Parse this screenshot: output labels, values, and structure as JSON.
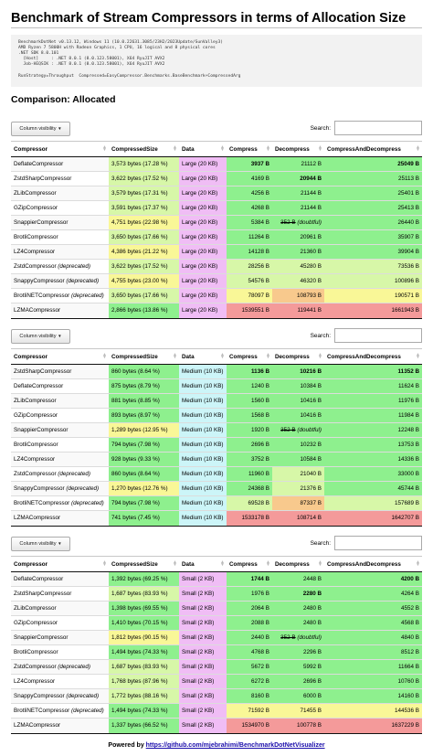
{
  "title": "Benchmark of Stream Compressors in terms of Allocation Size",
  "environment_lines": [
    "BenchmarkDotNet v0.13.12, Windows 11 (10.0.22631.3085/23H2/2023Update/SunValley3)",
    "AMD Ryzen 7 5800H with Radeon Graphics, 1 CPU, 16 logical and 8 physical cores",
    ".NET SDK 8.0.101",
    "  [Host]     : .NET 8.0.1 (8.0.123.58001), X64 RyuJIT AVX2",
    "  Job-HEQSIK : .NET 8.0.1 (8.0.123.58001), X64 RyuJIT AVX2",
    "",
    "RunStrategy=Throughput  Compressed=EasyCompressor.Benchmarks.BaseBenchmark+CompressedArg"
  ],
  "section_title": "Comparison: Allocated",
  "controls": {
    "column_visibility_label": "Column visibility",
    "column_visibility_caret": "▼",
    "search_label": "Search:",
    "search_value": "",
    "search_placeholder": ""
  },
  "columns": [
    "Compressor",
    "CompressedSize",
    "Data",
    "Compress",
    "Decompress",
    "CompressAndDecompress"
  ],
  "colors": {
    "green": "#8ef08e",
    "light_green": "#d7f7a8",
    "yellow": "#f9f797",
    "orange": "#f8c98d",
    "red": "#f49a9a",
    "pink": "#f0bdf5",
    "cyan": "#ccf5f8",
    "row_odd": "#f9f9f9",
    "row_even": "#ffffff"
  },
  "tables": [
    {
      "data_bg": "pink",
      "rows": [
        {
          "name": "DeflateCompressor",
          "note": "",
          "size": "3,573 bytes (17.28 %)",
          "size_c": "light_green",
          "data": "Large (20 KB)",
          "compress": "3937 B",
          "compress_c": "green",
          "compress_b": true,
          "decompress": "21112 B",
          "decompress_c": "green",
          "decompress_b": false,
          "decompress_strike": "",
          "decompress_note": "",
          "cad": "25049 B",
          "cad_c": "green",
          "cad_b": true
        },
        {
          "name": "ZstdSharpCompressor",
          "note": "",
          "size": "3,622 bytes (17.52 %)",
          "size_c": "light_green",
          "data": "Large (20 KB)",
          "compress": "4169 B",
          "compress_c": "green",
          "compress_b": false,
          "decompress": "20944 B",
          "decompress_c": "green",
          "decompress_b": true,
          "decompress_strike": "",
          "decompress_note": "",
          "cad": "25113 B",
          "cad_c": "green",
          "cad_b": false
        },
        {
          "name": "ZLibCompressor",
          "note": "",
          "size": "3,579 bytes (17.31 %)",
          "size_c": "light_green",
          "data": "Large (20 KB)",
          "compress": "4256 B",
          "compress_c": "green",
          "compress_b": false,
          "decompress": "21144 B",
          "decompress_c": "green",
          "decompress_b": false,
          "decompress_strike": "",
          "decompress_note": "",
          "cad": "25401 B",
          "cad_c": "green",
          "cad_b": false
        },
        {
          "name": "GZipCompressor",
          "note": "",
          "size": "3,591 bytes (17.37 %)",
          "size_c": "light_green",
          "data": "Large (20 KB)",
          "compress": "4268 B",
          "compress_c": "green",
          "compress_b": false,
          "decompress": "21144 B",
          "decompress_c": "green",
          "decompress_b": false,
          "decompress_strike": "",
          "decompress_note": "",
          "cad": "25413 B",
          "cad_c": "green",
          "cad_b": false
        },
        {
          "name": "SnappierCompressor",
          "note": "",
          "size": "4,751 bytes (22.98 %)",
          "size_c": "yellow",
          "data": "Large (20 KB)",
          "compress": "5384 B",
          "compress_c": "green",
          "compress_b": false,
          "decompress": "",
          "decompress_c": "green",
          "decompress_b": false,
          "decompress_strike": "352 B",
          "decompress_note": "(doubtful)",
          "cad": "26440 B",
          "cad_c": "green",
          "cad_b": false
        },
        {
          "name": "BrotliCompressor",
          "note": "",
          "size": "3,650 bytes (17.66 %)",
          "size_c": "light_green",
          "data": "Large (20 KB)",
          "compress": "11264 B",
          "compress_c": "green",
          "compress_b": false,
          "decompress": "20961 B",
          "decompress_c": "green",
          "decompress_b": false,
          "decompress_strike": "",
          "decompress_note": "",
          "cad": "35907 B",
          "cad_c": "green",
          "cad_b": false
        },
        {
          "name": "LZ4Compressor",
          "note": "",
          "size": "4,386 bytes (21.22 %)",
          "size_c": "yellow",
          "data": "Large (20 KB)",
          "compress": "14128 B",
          "compress_c": "green",
          "compress_b": false,
          "decompress": "21360 B",
          "decompress_c": "green",
          "decompress_b": false,
          "decompress_strike": "",
          "decompress_note": "",
          "cad": "39904 B",
          "cad_c": "green",
          "cad_b": false
        },
        {
          "name": "ZstdCompressor",
          "note": "(deprecated)",
          "size": "3,622 bytes (17.52 %)",
          "size_c": "light_green",
          "data": "Large (20 KB)",
          "compress": "28256 B",
          "compress_c": "light_green",
          "compress_b": false,
          "decompress": "45280 B",
          "decompress_c": "light_green",
          "decompress_b": false,
          "decompress_strike": "",
          "decompress_note": "",
          "cad": "73536 B",
          "cad_c": "light_green",
          "cad_b": false
        },
        {
          "name": "SnappyCompressor",
          "note": "(deprecated)",
          "size": "4,755 bytes (23.00 %)",
          "size_c": "yellow",
          "data": "Large (20 KB)",
          "compress": "54576 B",
          "compress_c": "light_green",
          "compress_b": false,
          "decompress": "46320 B",
          "decompress_c": "light_green",
          "decompress_b": false,
          "decompress_strike": "",
          "decompress_note": "",
          "cad": "100896 B",
          "cad_c": "light_green",
          "cad_b": false
        },
        {
          "name": "BrotliNETCompressor",
          "note": "(deprecated)",
          "size": "3,650 bytes (17.66 %)",
          "size_c": "light_green",
          "data": "Large (20 KB)",
          "compress": "78097 B",
          "compress_c": "yellow",
          "compress_b": false,
          "decompress": "108793 B",
          "decompress_c": "orange",
          "decompress_b": false,
          "decompress_strike": "",
          "decompress_note": "",
          "cad": "190571 B",
          "cad_c": "yellow",
          "cad_b": false
        },
        {
          "name": "LZMACompressor",
          "note": "",
          "size": "2,866 bytes (13.86 %)",
          "size_c": "green",
          "data": "Large (20 KB)",
          "compress": "1539551 B",
          "compress_c": "red",
          "compress_b": false,
          "decompress": "119441 B",
          "decompress_c": "red",
          "decompress_b": false,
          "decompress_strike": "",
          "decompress_note": "",
          "cad": "1661943 B",
          "cad_c": "red",
          "cad_b": false
        }
      ]
    },
    {
      "data_bg": "cyan",
      "rows": [
        {
          "name": "ZstdSharpCompressor",
          "note": "",
          "size": "860 bytes (8.64 %)",
          "size_c": "green",
          "data": "Medium (10 KB)",
          "compress": "1136 B",
          "compress_c": "green",
          "compress_b": true,
          "decompress": "10216 B",
          "decompress_c": "green",
          "decompress_b": true,
          "decompress_strike": "",
          "decompress_note": "",
          "cad": "11352 B",
          "cad_c": "green",
          "cad_b": true
        },
        {
          "name": "DeflateCompressor",
          "note": "",
          "size": "875 bytes (8.79 %)",
          "size_c": "green",
          "data": "Medium (10 KB)",
          "compress": "1240 B",
          "compress_c": "green",
          "compress_b": false,
          "decompress": "10384 B",
          "decompress_c": "green",
          "decompress_b": false,
          "decompress_strike": "",
          "decompress_note": "",
          "cad": "11624 B",
          "cad_c": "green",
          "cad_b": false
        },
        {
          "name": "ZLibCompressor",
          "note": "",
          "size": "881 bytes (8.85 %)",
          "size_c": "green",
          "data": "Medium (10 KB)",
          "compress": "1560 B",
          "compress_c": "green",
          "compress_b": false,
          "decompress": "10416 B",
          "decompress_c": "green",
          "decompress_b": false,
          "decompress_strike": "",
          "decompress_note": "",
          "cad": "11976 B",
          "cad_c": "green",
          "cad_b": false
        },
        {
          "name": "GZipCompressor",
          "note": "",
          "size": "893 bytes (8.97 %)",
          "size_c": "green",
          "data": "Medium (10 KB)",
          "compress": "1568 B",
          "compress_c": "green",
          "compress_b": false,
          "decompress": "10416 B",
          "decompress_c": "green",
          "decompress_b": false,
          "decompress_strike": "",
          "decompress_note": "",
          "cad": "11984 B",
          "cad_c": "green",
          "cad_b": false
        },
        {
          "name": "SnappierCompressor",
          "note": "",
          "size": "1,289 bytes (12.95 %)",
          "size_c": "yellow",
          "data": "Medium (10 KB)",
          "compress": "1920 B",
          "compress_c": "green",
          "compress_b": false,
          "decompress": "",
          "decompress_c": "green",
          "decompress_b": false,
          "decompress_strike": "352 B",
          "decompress_note": "(doubtful)",
          "cad": "12248 B",
          "cad_c": "green",
          "cad_b": false
        },
        {
          "name": "BrotliCompressor",
          "note": "",
          "size": "794 bytes (7.98 %)",
          "size_c": "green",
          "data": "Medium (10 KB)",
          "compress": "2696 B",
          "compress_c": "green",
          "compress_b": false,
          "decompress": "10232 B",
          "decompress_c": "green",
          "decompress_b": false,
          "decompress_strike": "",
          "decompress_note": "",
          "cad": "13753 B",
          "cad_c": "green",
          "cad_b": false
        },
        {
          "name": "LZ4Compressor",
          "note": "",
          "size": "928 bytes (9.33 %)",
          "size_c": "green",
          "data": "Medium (10 KB)",
          "compress": "3752 B",
          "compress_c": "green",
          "compress_b": false,
          "decompress": "10584 B",
          "decompress_c": "green",
          "decompress_b": false,
          "decompress_strike": "",
          "decompress_note": "",
          "cad": "14336 B",
          "cad_c": "green",
          "cad_b": false
        },
        {
          "name": "ZstdCompressor",
          "note": "(deprecated)",
          "size": "860 bytes (8.64 %)",
          "size_c": "green",
          "data": "Medium (10 KB)",
          "compress": "11960 B",
          "compress_c": "green",
          "compress_b": false,
          "decompress": "21040 B",
          "decompress_c": "light_green",
          "decompress_b": false,
          "decompress_strike": "",
          "decompress_note": "",
          "cad": "33000 B",
          "cad_c": "green",
          "cad_b": false
        },
        {
          "name": "SnappyCompressor",
          "note": "(deprecated)",
          "size": "1,270 bytes (12.76 %)",
          "size_c": "yellow",
          "data": "Medium (10 KB)",
          "compress": "24368 B",
          "compress_c": "green",
          "compress_b": false,
          "decompress": "21376 B",
          "decompress_c": "light_green",
          "decompress_b": false,
          "decompress_strike": "",
          "decompress_note": "",
          "cad": "45744 B",
          "cad_c": "green",
          "cad_b": false
        },
        {
          "name": "BrotliNETCompressor",
          "note": "(deprecated)",
          "size": "794 bytes (7.98 %)",
          "size_c": "green",
          "data": "Medium (10 KB)",
          "compress": "69528 B",
          "compress_c": "light_green",
          "compress_b": false,
          "decompress": "87337 B",
          "decompress_c": "orange",
          "decompress_b": false,
          "decompress_strike": "",
          "decompress_note": "",
          "cad": "157689 B",
          "cad_c": "light_green",
          "cad_b": false
        },
        {
          "name": "LZMACompressor",
          "note": "",
          "size": "741 bytes (7.45 %)",
          "size_c": "green",
          "data": "Medium (10 KB)",
          "compress": "1533178 B",
          "compress_c": "red",
          "compress_b": false,
          "decompress": "108714 B",
          "decompress_c": "red",
          "decompress_b": false,
          "decompress_strike": "",
          "decompress_note": "",
          "cad": "1642707 B",
          "cad_c": "red",
          "cad_b": false
        }
      ]
    },
    {
      "data_bg": "pink",
      "rows": [
        {
          "name": "DeflateCompressor",
          "note": "",
          "size": "1,392 bytes (69.25 %)",
          "size_c": "green",
          "data": "Small (2 KB)",
          "compress": "1744 B",
          "compress_c": "green",
          "compress_b": true,
          "decompress": "2448 B",
          "decompress_c": "green",
          "decompress_b": false,
          "decompress_strike": "",
          "decompress_note": "",
          "cad": "4200 B",
          "cad_c": "green",
          "cad_b": true
        },
        {
          "name": "ZstdSharpCompressor",
          "note": "",
          "size": "1,687 bytes (83.93 %)",
          "size_c": "light_green",
          "data": "Small (2 KB)",
          "compress": "1976 B",
          "compress_c": "green",
          "compress_b": false,
          "decompress": "2280 B",
          "decompress_c": "green",
          "decompress_b": true,
          "decompress_strike": "",
          "decompress_note": "",
          "cad": "4264 B",
          "cad_c": "green",
          "cad_b": false
        },
        {
          "name": "ZLibCompressor",
          "note": "",
          "size": "1,398 bytes (69.55 %)",
          "size_c": "green",
          "data": "Small (2 KB)",
          "compress": "2064 B",
          "compress_c": "green",
          "compress_b": false,
          "decompress": "2480 B",
          "decompress_c": "green",
          "decompress_b": false,
          "decompress_strike": "",
          "decompress_note": "",
          "cad": "4552 B",
          "cad_c": "green",
          "cad_b": false
        },
        {
          "name": "GZipCompressor",
          "note": "",
          "size": "1,410 bytes (70.15 %)",
          "size_c": "green",
          "data": "Small (2 KB)",
          "compress": "2088 B",
          "compress_c": "green",
          "compress_b": false,
          "decompress": "2480 B",
          "decompress_c": "green",
          "decompress_b": false,
          "decompress_strike": "",
          "decompress_note": "",
          "cad": "4568 B",
          "cad_c": "green",
          "cad_b": false
        },
        {
          "name": "SnappierCompressor",
          "note": "",
          "size": "1,812 bytes (90.15 %)",
          "size_c": "yellow",
          "data": "Small (2 KB)",
          "compress": "2440 B",
          "compress_c": "green",
          "compress_b": false,
          "decompress": "",
          "decompress_c": "green",
          "decompress_b": false,
          "decompress_strike": "352 B",
          "decompress_note": "(doubtful)",
          "cad": "4840 B",
          "cad_c": "green",
          "cad_b": false
        },
        {
          "name": "BrotliCompressor",
          "note": "",
          "size": "1,494 bytes (74.33 %)",
          "size_c": "green",
          "data": "Small (2 KB)",
          "compress": "4768 B",
          "compress_c": "green",
          "compress_b": false,
          "decompress": "2296 B",
          "decompress_c": "green",
          "decompress_b": false,
          "decompress_strike": "",
          "decompress_note": "",
          "cad": "8512 B",
          "cad_c": "green",
          "cad_b": false
        },
        {
          "name": "ZstdCompressor",
          "note": "(deprecated)",
          "size": "1,687 bytes (83.93 %)",
          "size_c": "light_green",
          "data": "Small (2 KB)",
          "compress": "5672 B",
          "compress_c": "green",
          "compress_b": false,
          "decompress": "5992 B",
          "decompress_c": "green",
          "decompress_b": false,
          "decompress_strike": "",
          "decompress_note": "",
          "cad": "11664 B",
          "cad_c": "green",
          "cad_b": false
        },
        {
          "name": "LZ4Compressor",
          "note": "",
          "size": "1,768 bytes (87.96 %)",
          "size_c": "light_green",
          "data": "Small (2 KB)",
          "compress": "6272 B",
          "compress_c": "green",
          "compress_b": false,
          "decompress": "2696 B",
          "decompress_c": "green",
          "decompress_b": false,
          "decompress_strike": "",
          "decompress_note": "",
          "cad": "10760 B",
          "cad_c": "green",
          "cad_b": false
        },
        {
          "name": "SnappyCompressor",
          "note": "(deprecated)",
          "size": "1,772 bytes (88.16 %)",
          "size_c": "light_green",
          "data": "Small (2 KB)",
          "compress": "8160 B",
          "compress_c": "green",
          "compress_b": false,
          "decompress": "6000 B",
          "decompress_c": "green",
          "decompress_b": false,
          "decompress_strike": "",
          "decompress_note": "",
          "cad": "14160 B",
          "cad_c": "green",
          "cad_b": false
        },
        {
          "name": "BrotliNETCompressor",
          "note": "(deprecated)",
          "size": "1,494 bytes (74.33 %)",
          "size_c": "green",
          "data": "Small (2 KB)",
          "compress": "71592 B",
          "compress_c": "yellow",
          "compress_b": false,
          "decompress": "71455 B",
          "decompress_c": "yellow",
          "decompress_b": false,
          "decompress_strike": "",
          "decompress_note": "",
          "cad": "144536 B",
          "cad_c": "yellow",
          "cad_b": false
        },
        {
          "name": "LZMACompressor",
          "note": "",
          "size": "1,337 bytes (66.52 %)",
          "size_c": "green",
          "data": "Small (2 KB)",
          "compress": "1534970 B",
          "compress_c": "red",
          "compress_b": false,
          "decompress": "100778 B",
          "decompress_c": "red",
          "decompress_b": false,
          "decompress_strike": "",
          "decompress_note": "",
          "cad": "1637229 B",
          "cad_c": "red",
          "cad_b": false
        }
      ]
    }
  ],
  "footer": {
    "prefix": "Powered by ",
    "link": "https://github.com/mjebrahimi/BenchmarkDotNetVisualizer"
  }
}
